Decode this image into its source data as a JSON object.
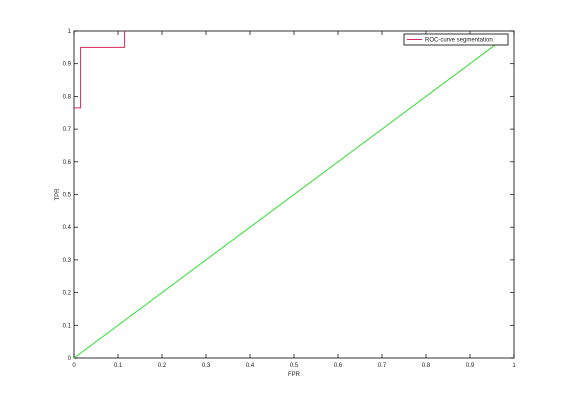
{
  "chart_data": {
    "type": "line",
    "title": "",
    "xlabel": "FPR",
    "ylabel": "TPR",
    "xlim": [
      0,
      1
    ],
    "ylim": [
      0,
      1
    ],
    "xticks": [
      "0",
      "0.1",
      "0.2",
      "0.3",
      "0.4",
      "0.5",
      "0.6",
      "0.7",
      "0.8",
      "0.9",
      "1"
    ],
    "yticks": [
      "0",
      "0.1",
      "0.2",
      "0.3",
      "0.4",
      "0.5",
      "0.6",
      "0.7",
      "0.8",
      "0.9",
      "1"
    ],
    "grid": false,
    "legend_position": "top-right",
    "series": [
      {
        "name": "ROC-curve segmentation",
        "color": "#d62a5a",
        "x": [
          0,
          0,
          0.015,
          0.015,
          0.115,
          0.115
        ],
        "y": [
          0.765,
          0.765,
          0.765,
          0.95,
          0.95,
          1.0
        ]
      },
      {
        "color": "#33dd33",
        "x": [
          0,
          0.97
        ],
        "y": [
          0,
          0.97
        ]
      }
    ]
  }
}
